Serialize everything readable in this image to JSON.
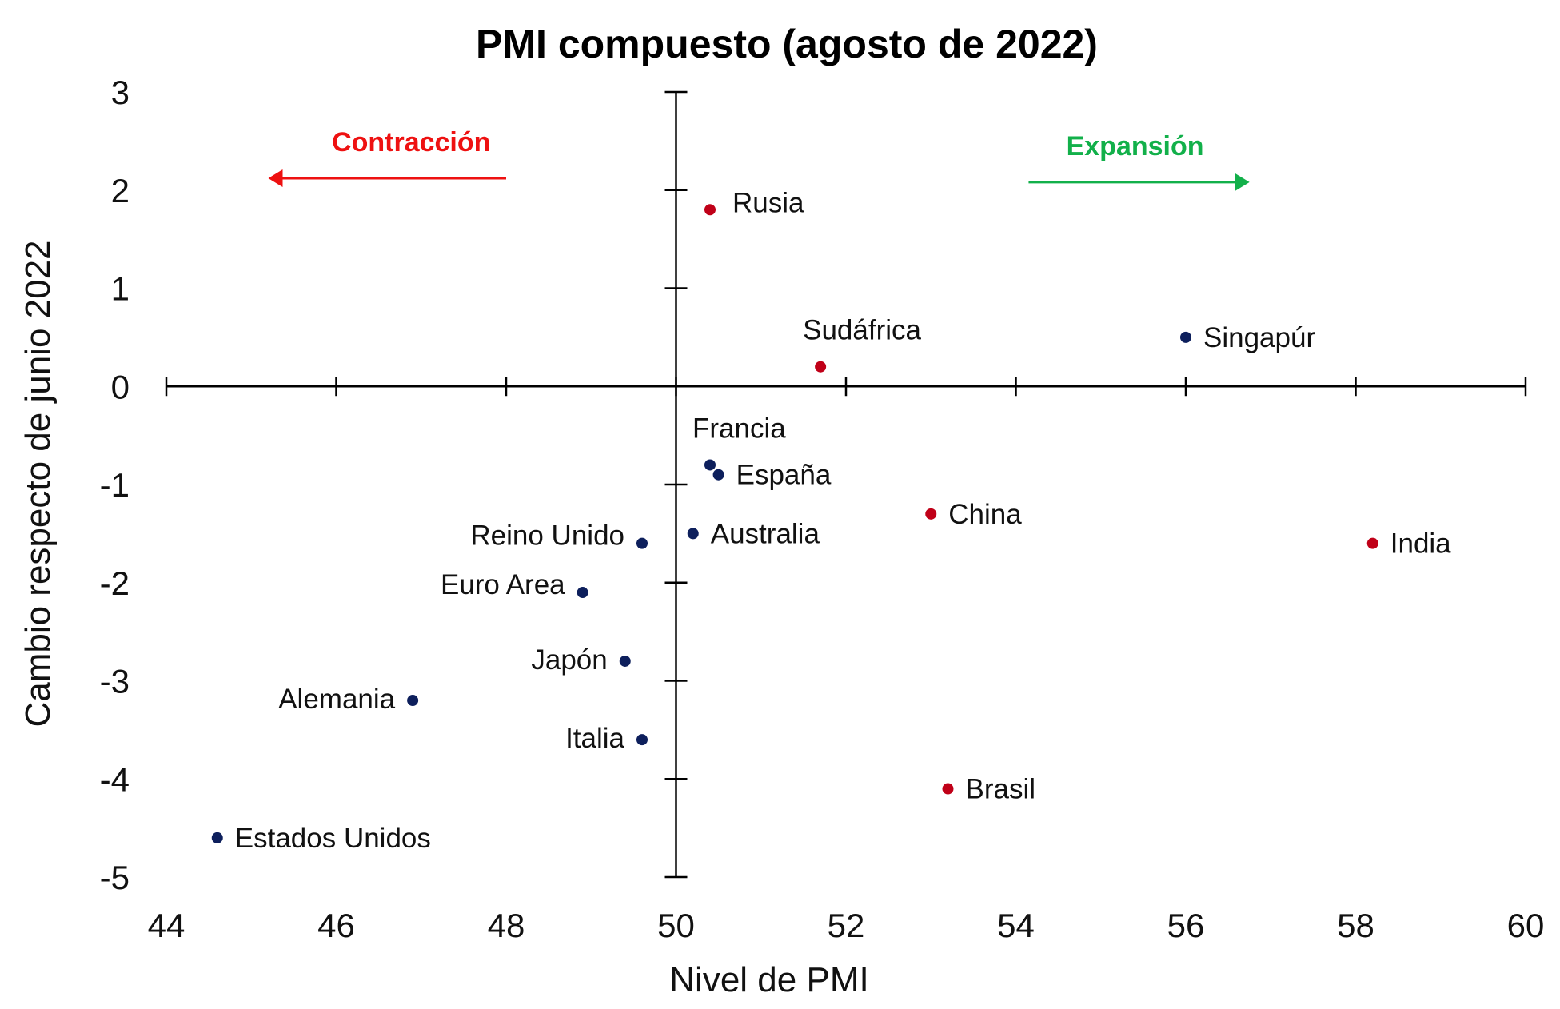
{
  "chart_data": {
    "type": "scatter",
    "title": "PMI compuesto (agosto de 2022)",
    "xlabel": "Nivel de PMI",
    "ylabel": "Cambio respecto de junio 2022",
    "xlim": [
      44,
      60
    ],
    "ylim": [
      -5,
      3
    ],
    "x_ticks": [
      44,
      46,
      48,
      50,
      52,
      54,
      56,
      58,
      60
    ],
    "y_ticks": [
      3,
      2,
      1,
      0,
      -1,
      -2,
      -3,
      -4,
      -5
    ],
    "axis_cross": {
      "x": 50,
      "y": 0
    },
    "grid": false,
    "colors": {
      "red": "#c00018",
      "navy": "#0d1f5c",
      "contraction": "#ee1111",
      "expansion": "#12b04a"
    },
    "points": [
      {
        "label": "Rusia",
        "x": 50.4,
        "y": 1.8,
        "color": "red",
        "label_pos": "right-up"
      },
      {
        "label": "Sudáfrica",
        "x": 51.7,
        "y": 0.2,
        "color": "red",
        "label_pos": "above"
      },
      {
        "label": "Singapúr",
        "x": 56.0,
        "y": 0.5,
        "color": "navy",
        "label_pos": "right"
      },
      {
        "label": "Francia",
        "x": 50.4,
        "y": -0.8,
        "color": "navy",
        "label_pos": "above"
      },
      {
        "label": "España",
        "x": 50.5,
        "y": -0.9,
        "color": "navy",
        "label_pos": "right"
      },
      {
        "label": "China",
        "x": 53.0,
        "y": -1.3,
        "color": "red",
        "label_pos": "right"
      },
      {
        "label": "India",
        "x": 58.2,
        "y": -1.6,
        "color": "red",
        "label_pos": "right"
      },
      {
        "label": "Australia",
        "x": 50.2,
        "y": -1.5,
        "color": "navy",
        "label_pos": "right"
      },
      {
        "label": "Reino Unido",
        "x": 49.6,
        "y": -1.6,
        "color": "navy",
        "label_pos": "left-up"
      },
      {
        "label": "Euro Area",
        "x": 48.9,
        "y": -2.1,
        "color": "navy",
        "label_pos": "left-up"
      },
      {
        "label": "Japón",
        "x": 49.4,
        "y": -2.8,
        "color": "navy",
        "label_pos": "left"
      },
      {
        "label": "Alemania",
        "x": 46.9,
        "y": -3.2,
        "color": "navy",
        "label_pos": "left"
      },
      {
        "label": "Italia",
        "x": 49.6,
        "y": -3.6,
        "color": "navy",
        "label_pos": "left"
      },
      {
        "label": "Brasil",
        "x": 53.2,
        "y": -4.1,
        "color": "red",
        "label_pos": "right"
      },
      {
        "label": "Estados Unidos",
        "x": 44.6,
        "y": -4.6,
        "color": "navy",
        "label_pos": "right"
      }
    ],
    "annotations": [
      {
        "text": "Contracción",
        "color": "contraction",
        "direction": "left",
        "x_from": 48.0,
        "x_to": 45.2,
        "y": 2.12
      },
      {
        "text": "Expansión",
        "color": "expansion",
        "direction": "right",
        "x_from": 54.15,
        "x_to": 56.75,
        "y": 2.08
      }
    ]
  }
}
